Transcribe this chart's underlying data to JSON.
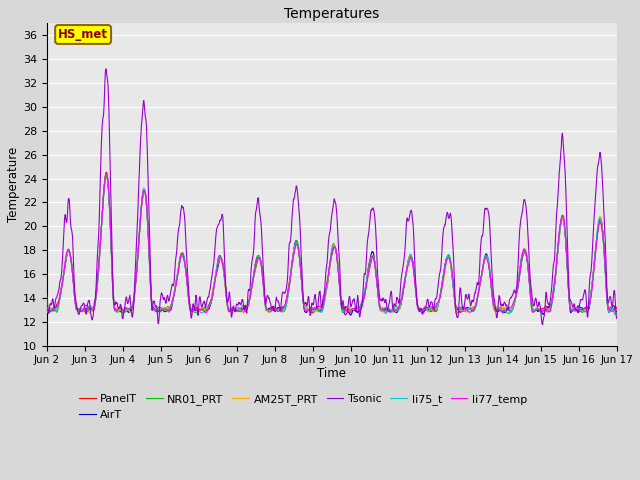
{
  "title": "Temperatures",
  "xlabel": "Time",
  "ylabel": "Temperature",
  "ylim": [
    10,
    37
  ],
  "background_color": "#e8e8e8",
  "grid_color": "white",
  "annotation_text": "HS_met",
  "annotation_bg": "#ffff00",
  "annotation_edge": "#8B6914",
  "xtick_labels": [
    "Jun 2",
    "Jun 3",
    "Jun 4",
    "Jun 5",
    "Jun 6",
    "Jun 7",
    "Jun 8",
    "Jun 9",
    "Jun 10",
    "Jun 11",
    "Jun 12",
    "Jun 13",
    "Jun 14",
    "Jun 15",
    "Jun 16",
    "Jun 17"
  ],
  "ytick_values": [
    10,
    12,
    14,
    16,
    18,
    20,
    22,
    24,
    26,
    28,
    30,
    32,
    34,
    36
  ],
  "series": {
    "PanelT": {
      "color": "#ff0000",
      "lw": 0.8,
      "zorder": 3
    },
    "AirT": {
      "color": "#0000cc",
      "lw": 0.8,
      "zorder": 3
    },
    "NR01_PRT": {
      "color": "#00cc00",
      "lw": 0.8,
      "zorder": 3
    },
    "AM25T_PRT": {
      "color": "#ffaa00",
      "lw": 0.8,
      "zorder": 3
    },
    "Tsonic": {
      "color": "#9900cc",
      "lw": 0.8,
      "zorder": 4
    },
    "li75_t": {
      "color": "#00cccc",
      "lw": 0.8,
      "zorder": 3
    },
    "li77_temp": {
      "color": "#ff00ff",
      "lw": 0.8,
      "zorder": 3
    }
  },
  "n_points": 1440,
  "figsize": [
    6.4,
    4.8
  ],
  "dpi": 100
}
